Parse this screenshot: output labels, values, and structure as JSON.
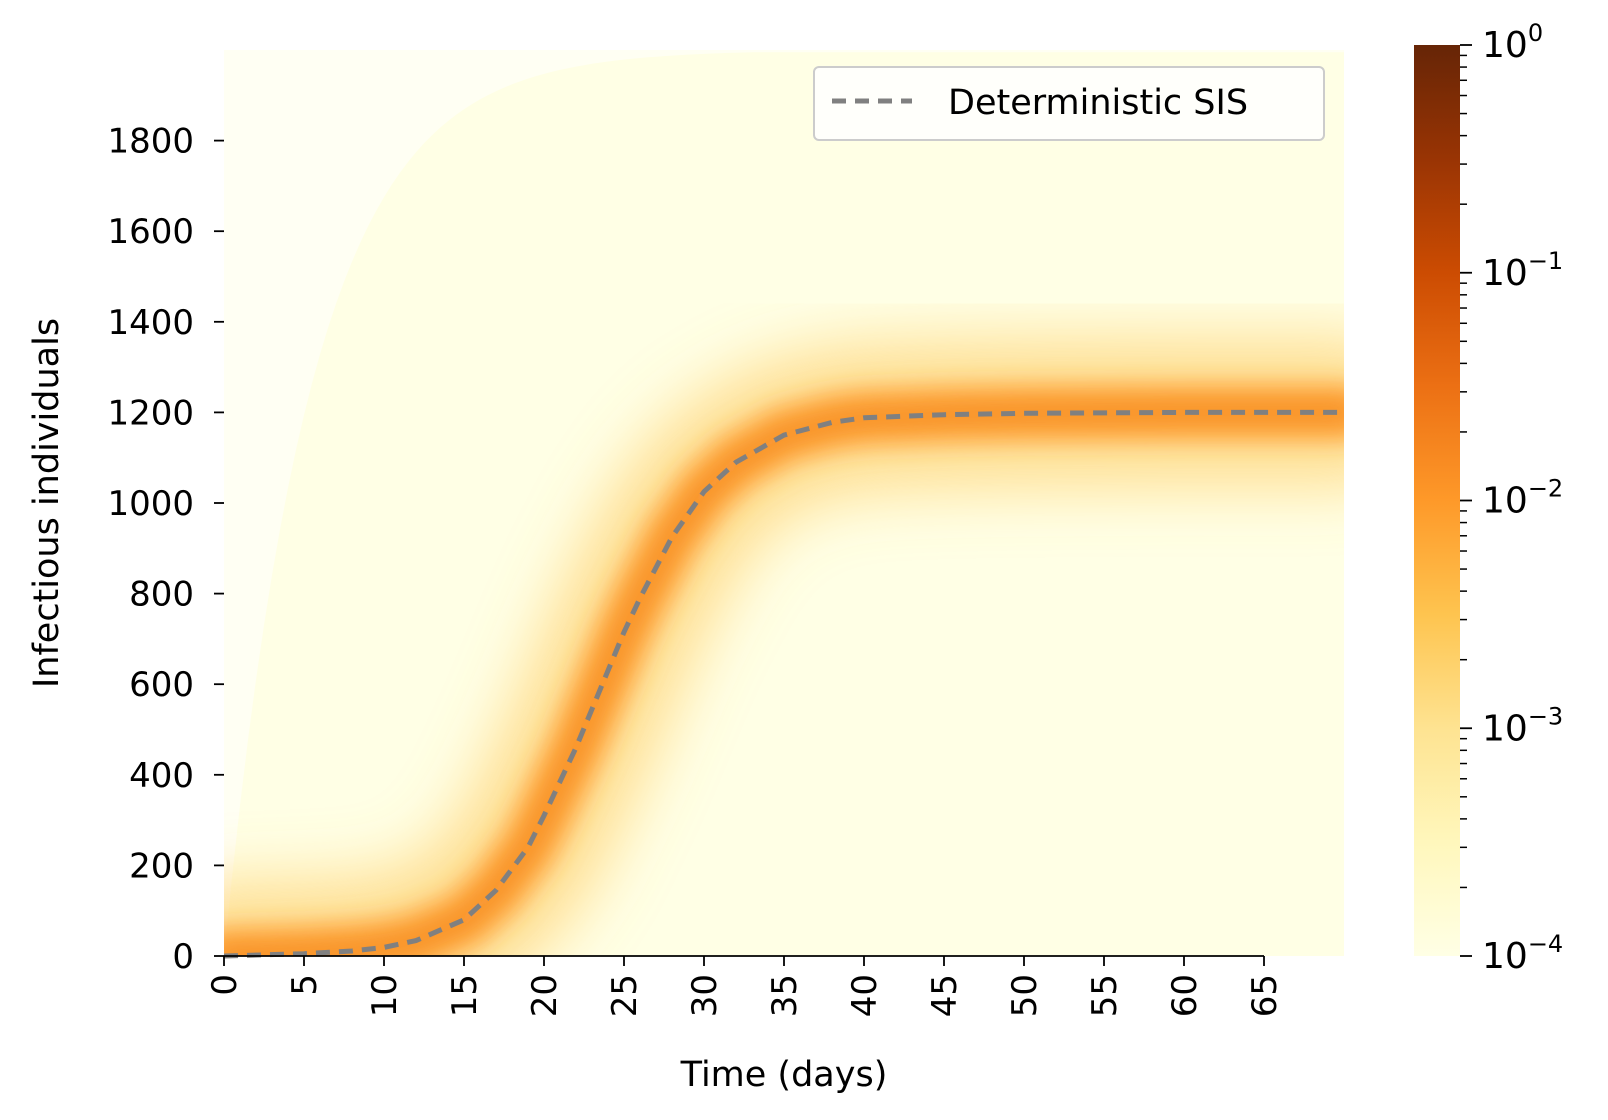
{
  "chart_data": {
    "type": "heatmap",
    "xlabel": "Time (days)",
    "ylabel": "Infectious individuals",
    "xlim": [
      0,
      70
    ],
    "ylim": [
      0,
      2000
    ],
    "x_ticks": [
      0,
      5,
      10,
      15,
      20,
      25,
      30,
      35,
      40,
      45,
      50,
      55,
      60,
      65
    ],
    "x_tick_labels": [
      "0",
      "5",
      "10",
      "15",
      "20",
      "25",
      "30",
      "35",
      "40",
      "45",
      "50",
      "55",
      "60",
      "65"
    ],
    "y_ticks": [
      0,
      200,
      400,
      600,
      800,
      1000,
      1200,
      1400,
      1600,
      1800
    ],
    "y_tick_labels": [
      "0",
      "200",
      "400",
      "600",
      "800",
      "1000",
      "1200",
      "1400",
      "1600",
      "1800"
    ],
    "colorbar": {
      "scale": "log",
      "range": [
        0.0001,
        1
      ],
      "ticks": [
        {
          "value": 1,
          "base": "10",
          "exp": "0"
        },
        {
          "value": 0.1,
          "base": "10",
          "exp": "−1"
        },
        {
          "value": 0.01,
          "base": "10",
          "exp": "−2"
        },
        {
          "value": 0.001,
          "base": "10",
          "exp": "−3"
        },
        {
          "value": 0.0001,
          "base": "10",
          "exp": "−4"
        }
      ],
      "colormap": [
        "#ffffe5",
        "#fff7bc",
        "#fee391",
        "#fec44f",
        "#fe9929",
        "#ec7014",
        "#cc4c02",
        "#993404",
        "#662506"
      ]
    },
    "series": [
      {
        "name": "Deterministic SIS",
        "style": "dashed",
        "color": "#808080",
        "x": [
          0,
          5,
          8,
          10,
          12,
          15,
          17,
          19,
          20,
          22,
          24,
          25,
          26,
          28,
          30,
          32,
          35,
          38,
          40,
          45,
          50,
          60,
          70
        ],
        "y": [
          0,
          5,
          11,
          19,
          34,
          80,
          145,
          240,
          310,
          460,
          630,
          715,
          790,
          925,
          1025,
          1090,
          1150,
          1178,
          1188,
          1195,
          1198,
          1200,
          1200
        ]
      }
    ],
    "legend": {
      "position": "top-right",
      "entries": [
        "Deterministic SIS"
      ]
    },
    "grid": false
  }
}
